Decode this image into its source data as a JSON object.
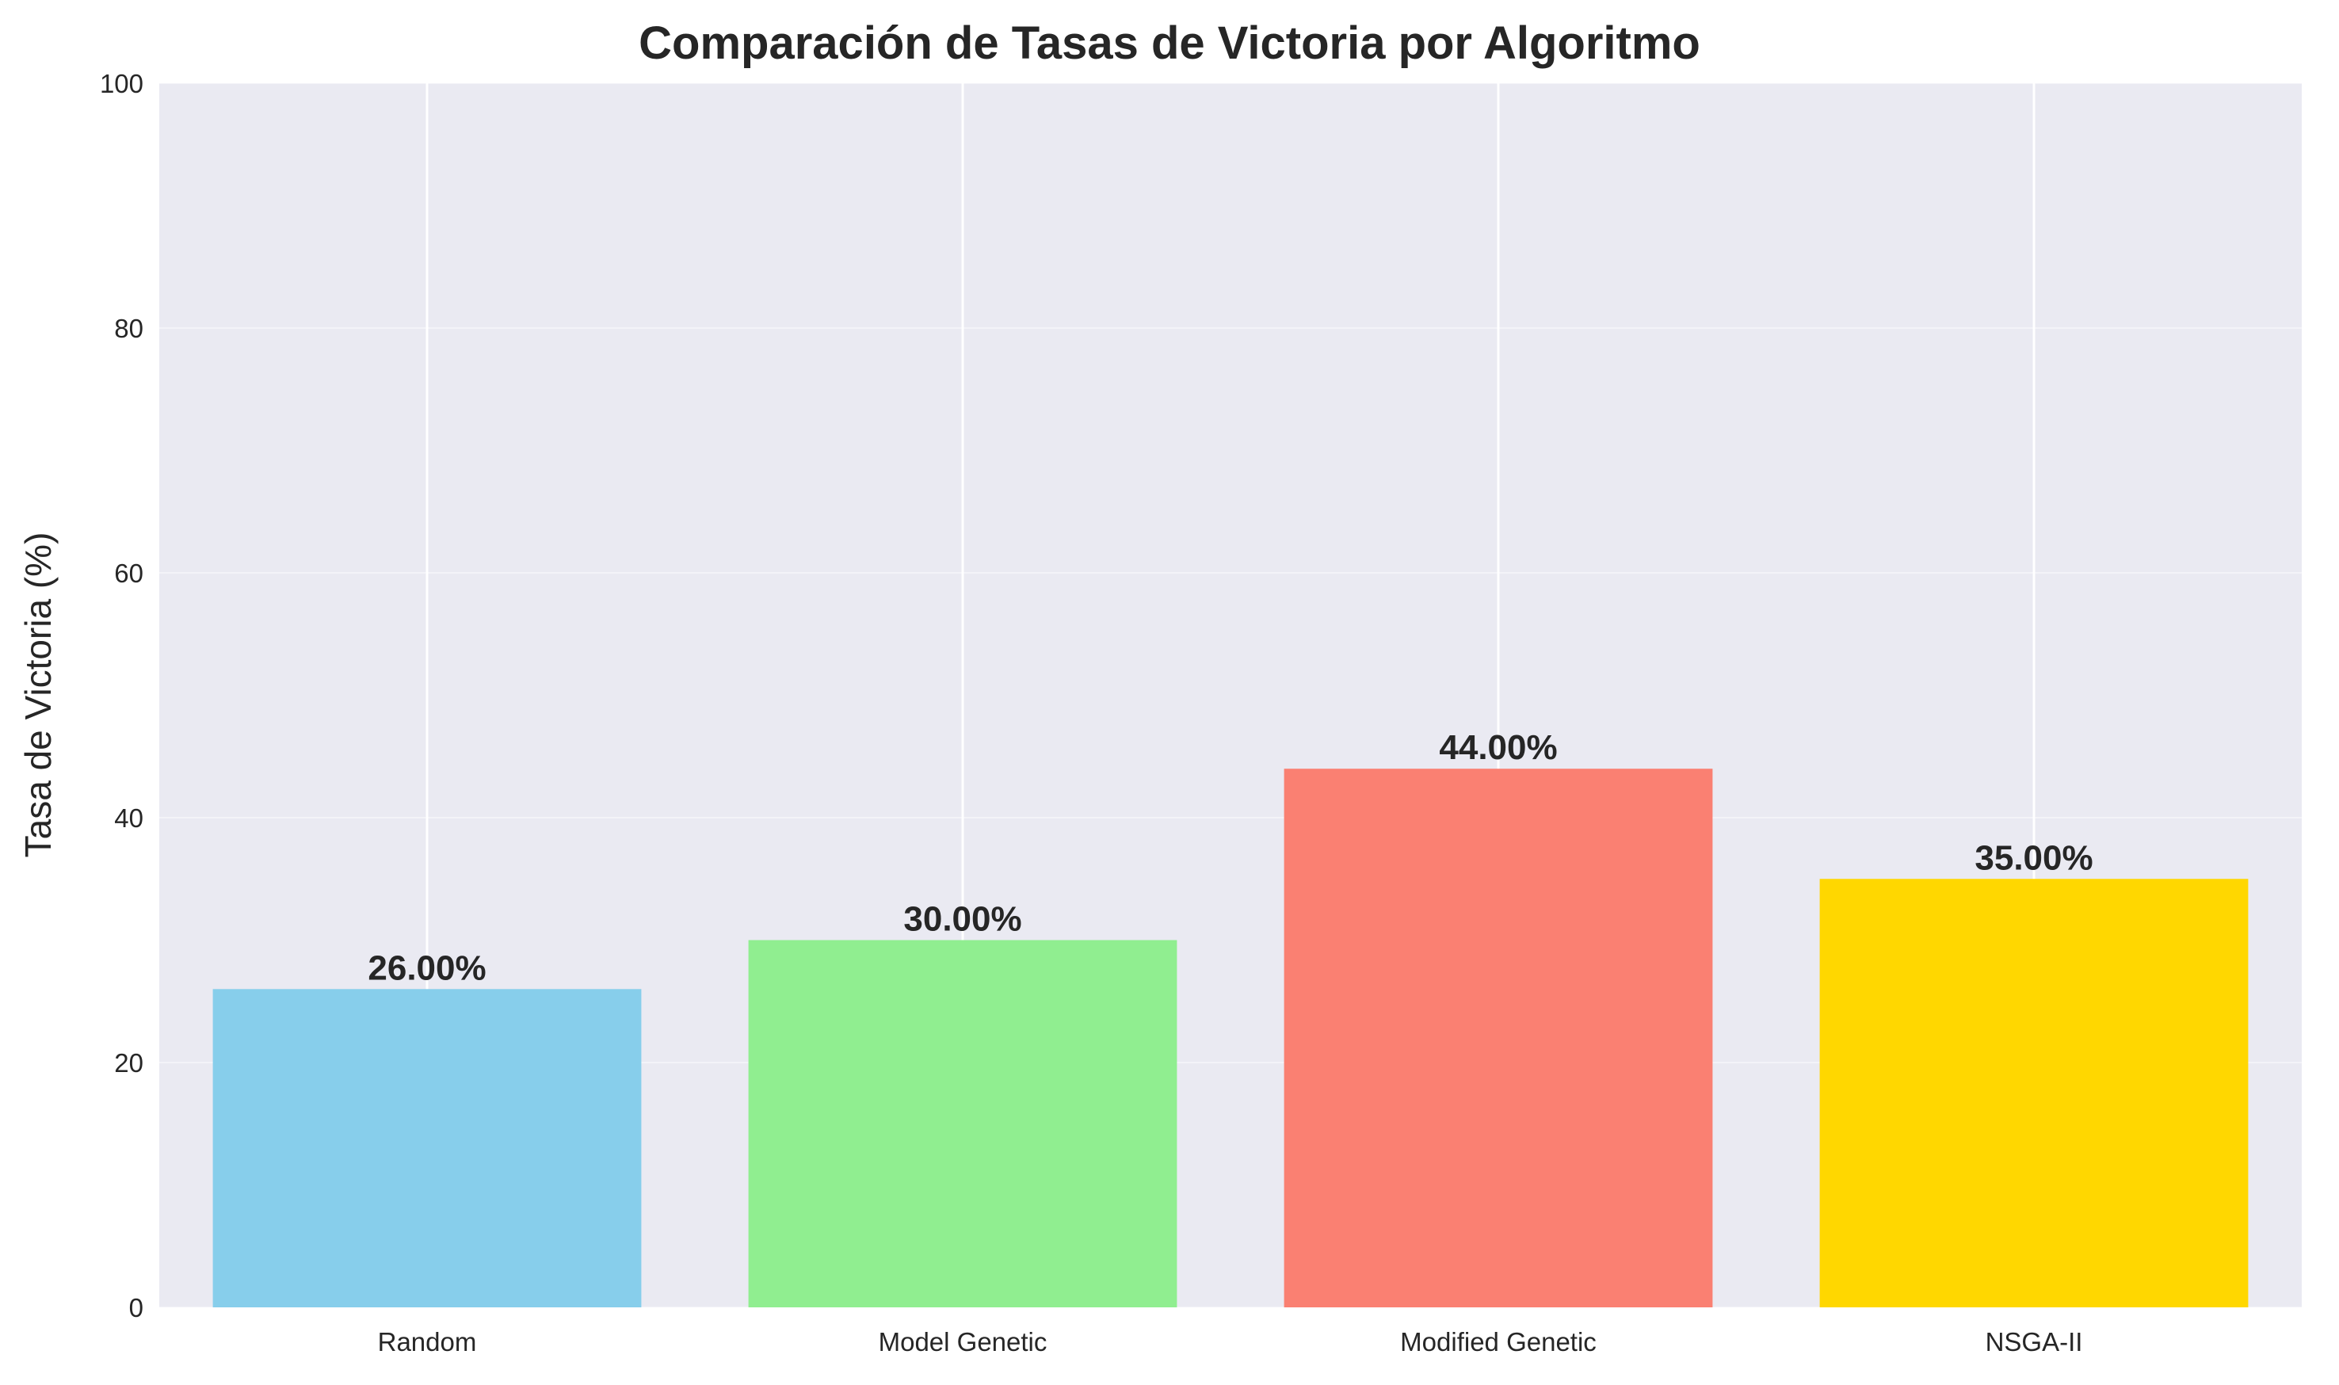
{
  "chart_data": {
    "type": "bar",
    "title": "Comparación de Tasas de Victoria por Algoritmo",
    "xlabel": "",
    "ylabel": "Tasa de Victoria (%)",
    "categories": [
      "Random",
      "Model Genetic",
      "Modified Genetic",
      "NSGA-II"
    ],
    "values": [
      26.0,
      30.0,
      44.0,
      35.0
    ],
    "value_labels": [
      "26.00%",
      "30.00%",
      "44.00%",
      "35.00%"
    ],
    "colors": [
      "#87CEEB",
      "#90EE90",
      "#FA8072",
      "#FFD700"
    ],
    "ylim": [
      0,
      100
    ],
    "yticks": [
      0,
      20,
      40,
      60,
      80,
      100
    ],
    "ytick_labels": [
      "0",
      "20",
      "40",
      "60",
      "80",
      "100"
    ],
    "grid": true,
    "background_color": "#EAEAF2",
    "grid_color": "#FFFFFF"
  }
}
